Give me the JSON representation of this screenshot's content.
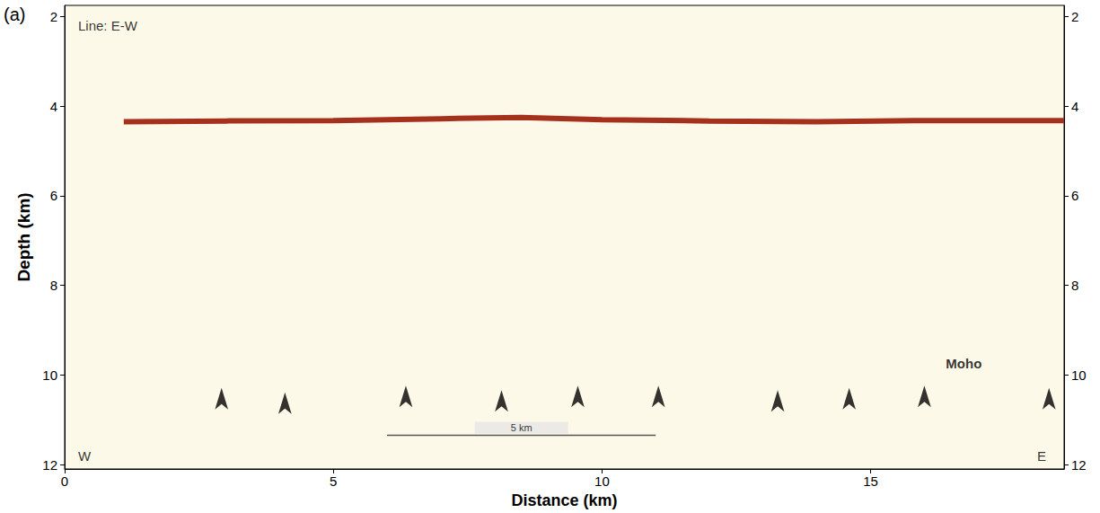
{
  "chart_data": {
    "type": "line",
    "panel_label": "(a)",
    "xlabel": "Distance (km)",
    "ylabel": "Depth (km)",
    "xlim": [
      0,
      18.6
    ],
    "xticks": [
      0,
      5,
      10,
      15
    ],
    "ylim": [
      1.75,
      12.1
    ],
    "yticks": [
      2,
      4,
      6,
      8,
      10,
      12
    ],
    "series": [
      {
        "type": "line",
        "color": "#a5301c",
        "x": [
          1.1,
          3,
          5,
          7,
          8.5,
          10,
          12,
          14,
          16,
          18.6
        ],
        "values": [
          4.35,
          4.33,
          4.32,
          4.28,
          4.25,
          4.3,
          4.33,
          4.35,
          4.32,
          4.32
        ]
      },
      {
        "type": "scatter",
        "marker": "arrow",
        "color": "#000000",
        "x": [
          2.92,
          4.1,
          6.35,
          8.13,
          9.55,
          11.05,
          13.27,
          14.6,
          16.0,
          18.32
        ],
        "values": [
          10.05,
          10.15,
          10.0,
          10.1,
          10.0,
          10.0,
          10.1,
          10.05,
          10.0,
          10.05
        ]
      }
    ],
    "annotations": [
      {
        "text": "Line: E-W",
        "x": 0.25,
        "y": 2.2
      },
      {
        "text": "Moho",
        "x": 16.4,
        "y": 9.75
      },
      {
        "text": "W",
        "x": 0.25,
        "y": 11.8
      },
      {
        "text": "E",
        "x": 18.1,
        "y": 11.8
      }
    ],
    "scale_bar": {
      "label": "5 km",
      "x": [
        6,
        11
      ],
      "y": 11.35
    }
  }
}
